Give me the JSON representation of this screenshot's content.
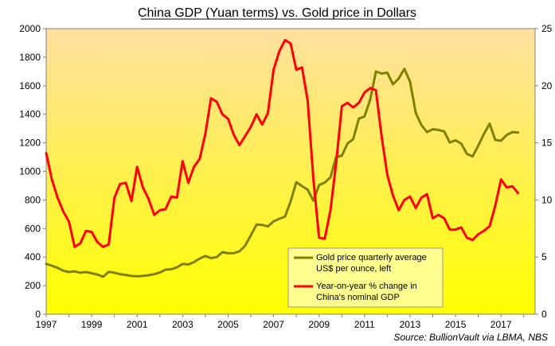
{
  "chart_data": {
    "type": "line",
    "title": "China GDP (Yuan terms) vs. Gold price in Dollars",
    "source": "Source: BullionVault via LBMA, NBS",
    "grid": false,
    "legend_position": "bottom-center inside plot",
    "background_gradient": [
      "#FFE0A0",
      "#FFFF00"
    ],
    "x_ticks": [
      "1997",
      "1999",
      "2001",
      "2003",
      "2005",
      "2007",
      "2009",
      "2011",
      "2013",
      "2015",
      "2017"
    ],
    "xlim": [
      1997,
      2018.5
    ],
    "y_left": {
      "lim": [
        0,
        2000
      ],
      "ticks": [
        "0",
        "200",
        "400",
        "600",
        "800",
        "1000",
        "1200",
        "1400",
        "1600",
        "1800",
        "2000"
      ]
    },
    "y_right": {
      "lim": [
        0,
        25
      ],
      "ticks": [
        "0",
        "5",
        "10",
        "15",
        "20",
        "25"
      ]
    },
    "series": [
      {
        "name": "Gold price quarterly average US$ per ounce, left",
        "legend_lines": [
          "Gold price quarterly average",
          "US$ per ounce, left"
        ],
        "axis": "left",
        "color": "#808000",
        "x": [
          1997.0,
          1997.25,
          1997.5,
          1997.75,
          1998.0,
          1998.25,
          1998.5,
          1998.75,
          1999.0,
          1999.25,
          1999.5,
          1999.75,
          2000.0,
          2000.25,
          2000.5,
          2000.75,
          2001.0,
          2001.25,
          2001.5,
          2001.75,
          2002.0,
          2002.25,
          2002.5,
          2002.75,
          2003.0,
          2003.25,
          2003.5,
          2003.75,
          2004.0,
          2004.25,
          2004.5,
          2004.75,
          2005.0,
          2005.25,
          2005.5,
          2005.75,
          2006.0,
          2006.25,
          2006.5,
          2006.75,
          2007.0,
          2007.25,
          2007.5,
          2007.75,
          2008.0,
          2008.25,
          2008.5,
          2008.75,
          2009.0,
          2009.25,
          2009.5,
          2009.75,
          2010.0,
          2010.25,
          2010.5,
          2010.75,
          2011.0,
          2011.25,
          2011.5,
          2011.75,
          2012.0,
          2012.25,
          2012.5,
          2012.75,
          2013.0,
          2013.25,
          2013.5,
          2013.75,
          2014.0,
          2014.25,
          2014.5,
          2014.75,
          2015.0,
          2015.25,
          2015.5,
          2015.75,
          2016.0,
          2016.25,
          2016.5,
          2016.75,
          2017.0,
          2017.25,
          2017.5,
          2017.75,
          2018.0
        ],
        "values": [
          352,
          340,
          325,
          305,
          295,
          300,
          290,
          295,
          287,
          278,
          262,
          297,
          290,
          280,
          275,
          268,
          265,
          268,
          273,
          280,
          292,
          312,
          315,
          328,
          352,
          348,
          365,
          390,
          408,
          393,
          400,
          435,
          427,
          428,
          440,
          480,
          552,
          628,
          625,
          615,
          650,
          668,
          683,
          790,
          925,
          897,
          872,
          795,
          905,
          922,
          958,
          1100,
          1110,
          1195,
          1225,
          1370,
          1385,
          1505,
          1700,
          1685,
          1692,
          1610,
          1650,
          1718,
          1630,
          1410,
          1325,
          1275,
          1295,
          1290,
          1280,
          1202,
          1218,
          1195,
          1123,
          1105,
          1180,
          1262,
          1335,
          1220,
          1215,
          1255,
          1275,
          1273,
          null
        ]
      },
      {
        "name": "Year-on-year % change in China's nominal GDP",
        "legend_lines": [
          "Year-on-year % change in",
          "China's nominal GDP"
        ],
        "axis": "right",
        "color": "#FF0000",
        "x": [
          1997.0,
          1997.25,
          1997.5,
          1997.75,
          1998.0,
          1998.25,
          1998.5,
          1998.75,
          1999.0,
          1999.25,
          1999.5,
          1999.75,
          2000.0,
          2000.25,
          2000.5,
          2000.75,
          2001.0,
          2001.25,
          2001.5,
          2001.75,
          2002.0,
          2002.25,
          2002.5,
          2002.75,
          2003.0,
          2003.25,
          2003.5,
          2003.75,
          2004.0,
          2004.25,
          2004.5,
          2004.75,
          2005.0,
          2005.25,
          2005.5,
          2005.75,
          2006.0,
          2006.25,
          2006.5,
          2006.75,
          2007.0,
          2007.25,
          2007.5,
          2007.75,
          2008.0,
          2008.25,
          2008.5,
          2008.75,
          2009.0,
          2009.25,
          2009.5,
          2009.75,
          2010.0,
          2010.25,
          2010.5,
          2010.75,
          2011.0,
          2011.25,
          2011.5,
          2011.75,
          2012.0,
          2012.25,
          2012.5,
          2012.75,
          2013.0,
          2013.25,
          2013.5,
          2013.75,
          2014.0,
          2014.25,
          2014.5,
          2014.75,
          2015.0,
          2015.25,
          2015.5,
          2015.75,
          2016.0,
          2016.25,
          2016.5,
          2016.75,
          2017.0,
          2017.25,
          2017.5,
          2017.75,
          2018.0
        ],
        "values": [
          14.1,
          11.8,
          10.2,
          9.0,
          8.1,
          5.9,
          6.2,
          7.3,
          7.2,
          6.3,
          5.9,
          6.1,
          10.2,
          11.4,
          11.5,
          9.9,
          12.9,
          11.1,
          10.1,
          8.7,
          9.1,
          9.2,
          10.3,
          10.2,
          13.4,
          11.5,
          12.9,
          13.6,
          15.8,
          18.9,
          18.6,
          17.5,
          17.1,
          15.7,
          14.8,
          15.6,
          16.4,
          17.5,
          16.6,
          17.6,
          21.4,
          23.0,
          24.0,
          23.7,
          21.4,
          21.6,
          18.7,
          11.8,
          6.7,
          6.6,
          9.1,
          13.2,
          18.2,
          18.5,
          18.1,
          18.5,
          19.4,
          19.8,
          19.6,
          15.6,
          12.2,
          10.4,
          9.1,
          10.0,
          10.3,
          9.3,
          10.2,
          10.5,
          8.4,
          8.7,
          8.4,
          7.4,
          7.4,
          7.6,
          6.7,
          6.5,
          7.0,
          7.3,
          7.7,
          9.5,
          11.8,
          11.1,
          11.2,
          10.6,
          null
        ]
      }
    ]
  }
}
